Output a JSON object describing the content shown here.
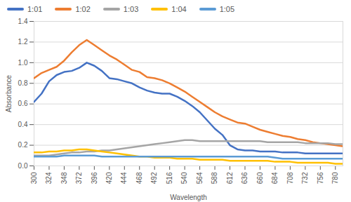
{
  "chart_data": {
    "type": "line",
    "x_label": "Wavelength",
    "y_label": "Absorbance",
    "x": [
      300,
      312,
      324,
      336,
      348,
      360,
      372,
      384,
      396,
      408,
      420,
      432,
      444,
      456,
      468,
      480,
      492,
      504,
      516,
      528,
      540,
      552,
      564,
      576,
      588,
      600,
      612,
      624,
      636,
      648,
      660,
      672,
      684,
      696,
      708,
      720,
      732,
      744,
      756,
      768,
      780,
      792
    ],
    "series": [
      {
        "name": "1:01",
        "color": "#4472c4",
        "values": [
          0.62,
          0.7,
          0.82,
          0.88,
          0.91,
          0.92,
          0.95,
          1.0,
          0.97,
          0.92,
          0.85,
          0.84,
          0.82,
          0.8,
          0.76,
          0.73,
          0.71,
          0.7,
          0.7,
          0.67,
          0.63,
          0.58,
          0.52,
          0.44,
          0.36,
          0.3,
          0.2,
          0.16,
          0.15,
          0.15,
          0.14,
          0.14,
          0.14,
          0.13,
          0.13,
          0.13,
          0.12,
          0.12,
          0.12,
          0.12,
          0.12,
          0.12
        ]
      },
      {
        "name": "1:02",
        "color": "#ed7d31",
        "values": [
          0.85,
          0.9,
          0.93,
          0.96,
          1.02,
          1.1,
          1.17,
          1.22,
          1.17,
          1.12,
          1.07,
          1.03,
          0.98,
          0.93,
          0.91,
          0.86,
          0.85,
          0.83,
          0.8,
          0.76,
          0.72,
          0.67,
          0.62,
          0.57,
          0.52,
          0.48,
          0.45,
          0.42,
          0.41,
          0.38,
          0.35,
          0.33,
          0.31,
          0.29,
          0.28,
          0.26,
          0.25,
          0.23,
          0.22,
          0.21,
          0.2,
          0.19
        ]
      },
      {
        "name": "1:03",
        "color": "#a5a5a5",
        "values": [
          0.1,
          0.1,
          0.1,
          0.11,
          0.12,
          0.13,
          0.13,
          0.14,
          0.14,
          0.15,
          0.15,
          0.16,
          0.17,
          0.18,
          0.19,
          0.2,
          0.21,
          0.22,
          0.23,
          0.24,
          0.25,
          0.25,
          0.24,
          0.24,
          0.24,
          0.24,
          0.24,
          0.24,
          0.24,
          0.24,
          0.24,
          0.23,
          0.23,
          0.23,
          0.23,
          0.23,
          0.22,
          0.22,
          0.22,
          0.22,
          0.21,
          0.21
        ]
      },
      {
        "name": "1:04",
        "color": "#ffc000",
        "values": [
          0.13,
          0.13,
          0.14,
          0.14,
          0.15,
          0.15,
          0.16,
          0.16,
          0.15,
          0.14,
          0.13,
          0.12,
          0.11,
          0.1,
          0.09,
          0.09,
          0.08,
          0.08,
          0.08,
          0.07,
          0.07,
          0.07,
          0.06,
          0.06,
          0.06,
          0.06,
          0.05,
          0.05,
          0.05,
          0.05,
          0.05,
          0.05,
          0.04,
          0.04,
          0.04,
          0.03,
          0.03,
          0.03,
          0.03,
          0.03,
          0.02,
          0.02
        ]
      },
      {
        "name": "1:05",
        "color": "#5b9bd5",
        "values": [
          0.09,
          0.09,
          0.09,
          0.09,
          0.1,
          0.1,
          0.1,
          0.1,
          0.1,
          0.09,
          0.09,
          0.09,
          0.09,
          0.09,
          0.09,
          0.09,
          0.09,
          0.09,
          0.09,
          0.09,
          0.09,
          0.09,
          0.09,
          0.09,
          0.09,
          0.09,
          0.09,
          0.09,
          0.09,
          0.09,
          0.09,
          0.09,
          0.08,
          0.07,
          0.07,
          0.07,
          0.07,
          0.07,
          0.07,
          0.07,
          0.07,
          0.07
        ]
      }
    ],
    "xlim": [
      300,
      792
    ],
    "xticks": [
      300,
      324,
      348,
      372,
      396,
      420,
      444,
      468,
      492,
      516,
      540,
      564,
      588,
      612,
      636,
      660,
      684,
      708,
      732,
      756,
      780
    ],
    "ylim": [
      0,
      1.4
    ],
    "yticks": [
      0,
      0.2,
      0.4,
      0.6,
      0.8,
      1,
      1.2,
      1.4
    ],
    "grid": true,
    "legend": "top"
  }
}
